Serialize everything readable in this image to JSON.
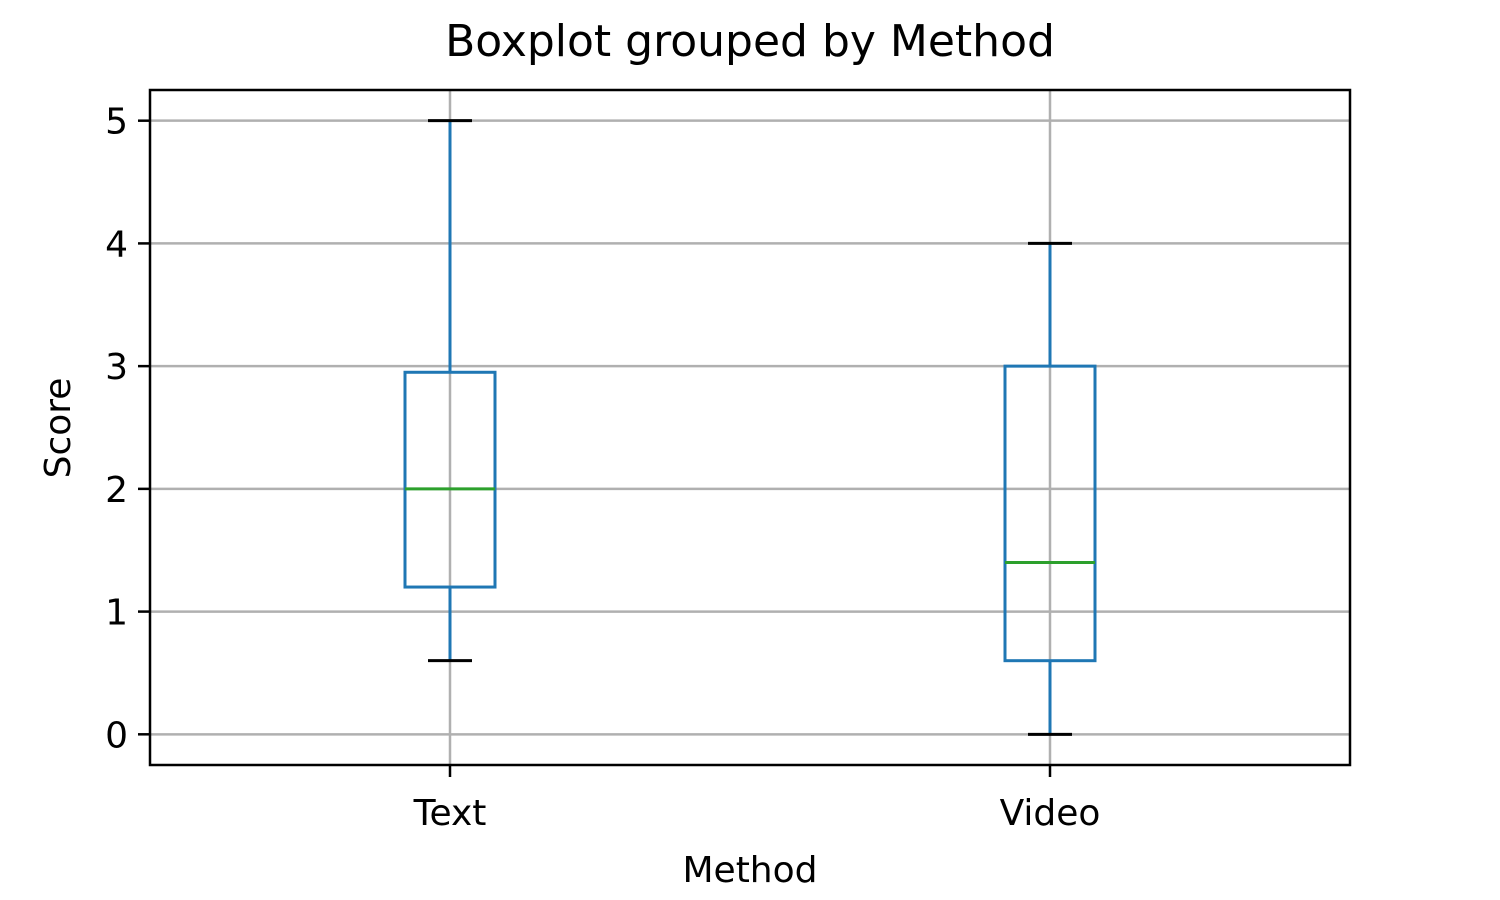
{
  "chart_data": {
    "type": "box",
    "title": "Boxplot grouped by Method",
    "xlabel": "Method",
    "ylabel": "Score",
    "categories": [
      "Text",
      "Video"
    ],
    "boxes": [
      {
        "category": "Text",
        "whisker_low": 0.6,
        "q1": 1.2,
        "median": 2.0,
        "q3": 2.95,
        "whisker_high": 5.0
      },
      {
        "category": "Video",
        "whisker_low": 0.0,
        "q1": 0.6,
        "median": 1.4,
        "q3": 3.0,
        "whisker_high": 4.0
      }
    ],
    "ylim": [
      -0.25,
      5.25
    ],
    "yticks": [
      0,
      1,
      2,
      3,
      4,
      5
    ],
    "grid": true,
    "colors": {
      "box": "#1f77b4",
      "median": "#2ca02c",
      "whisker_cap": "#000000",
      "grid": "#b0b0b0"
    }
  }
}
